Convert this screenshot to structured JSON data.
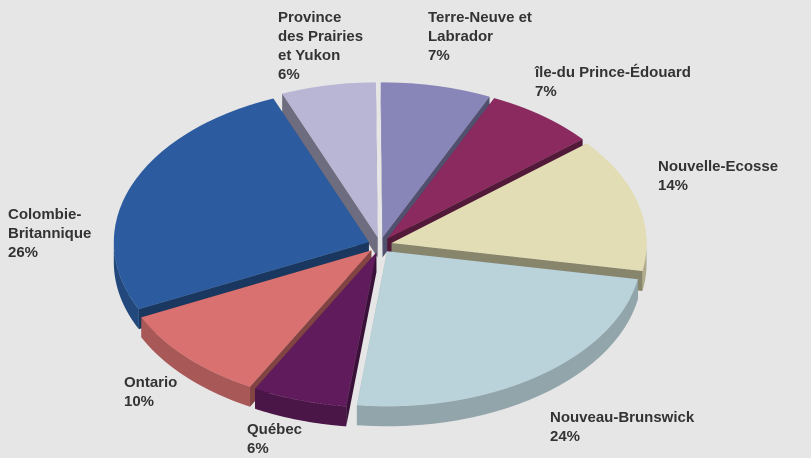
{
  "chart_data": {
    "type": "pie",
    "categories": [
      "Province des Prairies et Yukon",
      "Terre-Neuve et Labrador",
      "île-du Prince-Édouard",
      "Nouvelle-Ecosse",
      "Nouveau-Brunswick",
      "Québec",
      "Ontario",
      "Colombie-Britannique"
    ],
    "values": [
      6,
      7,
      7,
      14,
      24,
      6,
      10,
      26
    ],
    "value_labels": [
      "6%",
      "7%",
      "7%",
      "14%",
      "24%",
      "6%",
      "10%",
      "26%"
    ],
    "colors": [
      "#b8b6d4",
      "#8886b9",
      "#8a2a5f",
      "#e2ddb5",
      "#bad3db",
      "#5f1b5b",
      "#d8716f",
      "#2c5c9f"
    ]
  }
}
